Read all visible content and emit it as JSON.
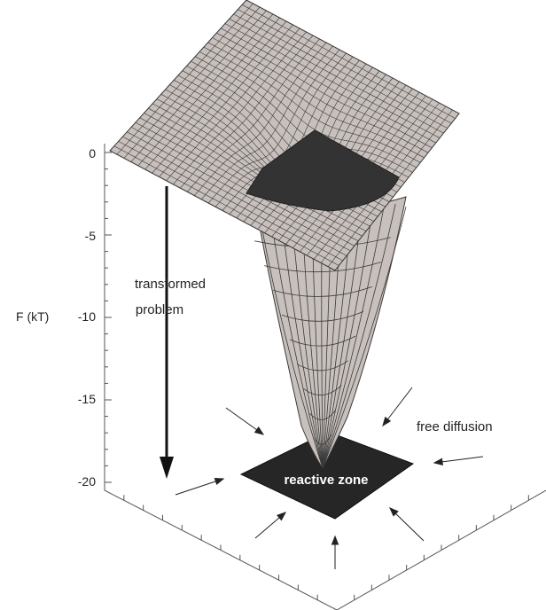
{
  "axis": {
    "label": "F (kT)",
    "ticks": [
      "0",
      "-5",
      "-10",
      "-15",
      "-20"
    ]
  },
  "annotations": {
    "transformed_line1": "transformed",
    "transformed_line2": "problem",
    "free_diffusion": "free diffusion",
    "reactive_zone": "reactive zone"
  },
  "colors": {
    "surface": "#c8c0bc",
    "mesh_line": "#3a3a3a",
    "dark_region": "#333333",
    "reactive_zone": "#262626",
    "text": "#222222"
  }
}
